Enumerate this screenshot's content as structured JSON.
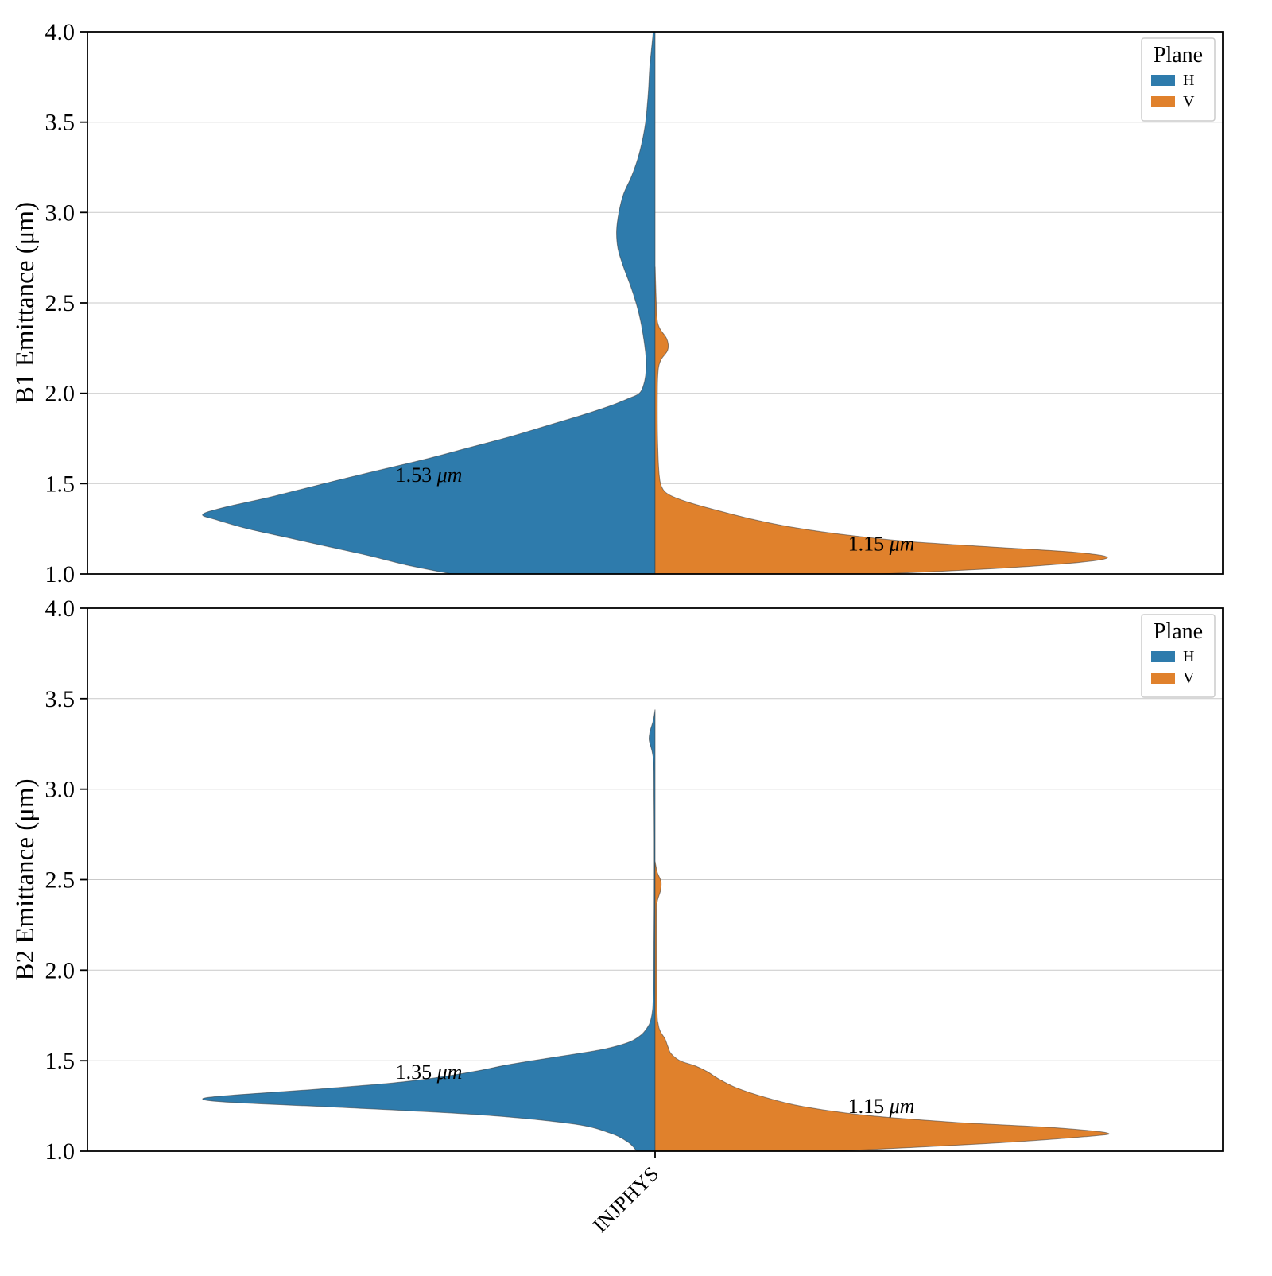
{
  "figure": {
    "background": "#ffffff",
    "axis_color": "#000000",
    "grid_color": "#c9c9c9",
    "x_tick_label": "INJPHYS",
    "plane_colors": {
      "H": "#2e7bac",
      "V": "#e0812c"
    }
  },
  "chart_data": [
    {
      "type": "violin",
      "subplot": "B1",
      "title": "",
      "xlabel": "",
      "ylabel": "B1 Emittance (μm)",
      "categories": [
        "INJPHYS"
      ],
      "ylim": [
        1.0,
        4.0
      ],
      "yticks": [
        1.0,
        1.5,
        2.0,
        2.5,
        3.0,
        3.5,
        4.0
      ],
      "grid": true,
      "legend": {
        "title": "Plane",
        "position": "upper right",
        "entries": [
          {
            "label": "H",
            "color": "#2e7bac"
          },
          {
            "label": "V",
            "color": "#e0812c"
          }
        ]
      },
      "series": [
        {
          "name": "H",
          "side": "left",
          "color": "#2e7bac",
          "annotation": "1.53 μm",
          "annotation_value": 1.53,
          "annotation_y": 1.55,
          "annotation_dx": -0.5,
          "profile": [
            [
              1.0,
              0.45
            ],
            [
              1.05,
              0.55
            ],
            [
              1.1,
              0.63
            ],
            [
              1.15,
              0.72
            ],
            [
              1.2,
              0.81
            ],
            [
              1.25,
              0.9
            ],
            [
              1.3,
              0.97
            ],
            [
              1.33,
              1.0
            ],
            [
              1.37,
              0.95
            ],
            [
              1.42,
              0.86
            ],
            [
              1.47,
              0.78
            ],
            [
              1.52,
              0.7
            ],
            [
              1.58,
              0.6
            ],
            [
              1.64,
              0.5
            ],
            [
              1.7,
              0.41
            ],
            [
              1.76,
              0.32
            ],
            [
              1.82,
              0.24
            ],
            [
              1.88,
              0.16
            ],
            [
              1.93,
              0.1
            ],
            [
              1.97,
              0.06
            ],
            [
              2.0,
              0.035
            ],
            [
              2.05,
              0.025
            ],
            [
              2.12,
              0.02
            ],
            [
              2.2,
              0.02
            ],
            [
              2.3,
              0.025
            ],
            [
              2.4,
              0.032
            ],
            [
              2.5,
              0.042
            ],
            [
              2.6,
              0.055
            ],
            [
              2.7,
              0.07
            ],
            [
              2.8,
              0.082
            ],
            [
              2.9,
              0.085
            ],
            [
              3.0,
              0.08
            ],
            [
              3.1,
              0.07
            ],
            [
              3.2,
              0.052
            ],
            [
              3.3,
              0.038
            ],
            [
              3.4,
              0.028
            ],
            [
              3.5,
              0.021
            ],
            [
              3.6,
              0.017
            ],
            [
              3.7,
              0.014
            ],
            [
              3.8,
              0.012
            ],
            [
              3.9,
              0.008
            ],
            [
              4.0,
              0.004
            ]
          ]
        },
        {
          "name": "V",
          "side": "right",
          "color": "#e0812c",
          "annotation": "1.15 μm",
          "annotation_value": 1.15,
          "annotation_y": 1.17,
          "annotation_dx": 0.5,
          "profile": [
            [
              1.0,
              0.5
            ],
            [
              1.03,
              0.75
            ],
            [
              1.06,
              0.92
            ],
            [
              1.09,
              1.0
            ],
            [
              1.12,
              0.93
            ],
            [
              1.15,
              0.74
            ],
            [
              1.18,
              0.56
            ],
            [
              1.22,
              0.41
            ],
            [
              1.26,
              0.3
            ],
            [
              1.3,
              0.22
            ],
            [
              1.35,
              0.14
            ],
            [
              1.4,
              0.07
            ],
            [
              1.44,
              0.03
            ],
            [
              1.48,
              0.015
            ],
            [
              1.55,
              0.009
            ],
            [
              1.7,
              0.006
            ],
            [
              1.9,
              0.005
            ],
            [
              2.1,
              0.006
            ],
            [
              2.18,
              0.012
            ],
            [
              2.24,
              0.028
            ],
            [
              2.3,
              0.026
            ],
            [
              2.36,
              0.01
            ],
            [
              2.42,
              0.004
            ],
            [
              2.55,
              0.002
            ],
            [
              2.7,
              0.0
            ]
          ]
        }
      ]
    },
    {
      "type": "violin",
      "subplot": "B2",
      "title": "",
      "xlabel": "",
      "ylabel": "B2 Emittance (μm)",
      "categories": [
        "INJPHYS"
      ],
      "ylim": [
        1.0,
        4.0
      ],
      "yticks": [
        1.0,
        1.5,
        2.0,
        2.5,
        3.0,
        3.5,
        4.0
      ],
      "grid": true,
      "legend": {
        "title": "Plane",
        "position": "upper right",
        "entries": [
          {
            "label": "H",
            "color": "#2e7bac"
          },
          {
            "label": "V",
            "color": "#e0812c"
          }
        ]
      },
      "series": [
        {
          "name": "H",
          "side": "left",
          "color": "#2e7bac",
          "annotation": "1.35 μm",
          "annotation_value": 1.35,
          "annotation_y": 1.44,
          "annotation_dx": -0.5,
          "profile": [
            [
              1.0,
              0.04
            ],
            [
              1.05,
              0.06
            ],
            [
              1.1,
              0.1
            ],
            [
              1.15,
              0.18
            ],
            [
              1.2,
              0.38
            ],
            [
              1.24,
              0.68
            ],
            [
              1.27,
              0.94
            ],
            [
              1.29,
              1.0
            ],
            [
              1.31,
              0.93
            ],
            [
              1.34,
              0.76
            ],
            [
              1.37,
              0.61
            ],
            [
              1.4,
              0.5
            ],
            [
              1.44,
              0.4
            ],
            [
              1.48,
              0.32
            ],
            [
              1.52,
              0.22
            ],
            [
              1.56,
              0.12
            ],
            [
              1.6,
              0.06
            ],
            [
              1.64,
              0.032
            ],
            [
              1.68,
              0.018
            ],
            [
              1.72,
              0.01
            ],
            [
              1.8,
              0.005
            ],
            [
              2.0,
              0.003
            ],
            [
              2.6,
              0.002
            ],
            [
              3.1,
              0.003
            ],
            [
              3.2,
              0.006
            ],
            [
              3.27,
              0.013
            ],
            [
              3.32,
              0.011
            ],
            [
              3.38,
              0.004
            ],
            [
              3.44,
              0.0
            ]
          ]
        },
        {
          "name": "V",
          "side": "right",
          "color": "#e0812c",
          "annotation": "1.15 μm",
          "annotation_value": 1.15,
          "annotation_y": 1.25,
          "annotation_dx": 0.5,
          "profile": [
            [
              1.0,
              0.4
            ],
            [
              1.04,
              0.72
            ],
            [
              1.08,
              0.95
            ],
            [
              1.1,
              1.0
            ],
            [
              1.13,
              0.88
            ],
            [
              1.16,
              0.66
            ],
            [
              1.2,
              0.46
            ],
            [
              1.25,
              0.32
            ],
            [
              1.3,
              0.24
            ],
            [
              1.35,
              0.18
            ],
            [
              1.4,
              0.14
            ],
            [
              1.44,
              0.115
            ],
            [
              1.47,
              0.09
            ],
            [
              1.5,
              0.055
            ],
            [
              1.54,
              0.035
            ],
            [
              1.58,
              0.028
            ],
            [
              1.62,
              0.022
            ],
            [
              1.66,
              0.012
            ],
            [
              1.7,
              0.007
            ],
            [
              1.8,
              0.004
            ],
            [
              2.3,
              0.003
            ],
            [
              2.38,
              0.005
            ],
            [
              2.44,
              0.012
            ],
            [
              2.49,
              0.013
            ],
            [
              2.54,
              0.005
            ],
            [
              2.6,
              0.0
            ]
          ]
        }
      ]
    }
  ]
}
